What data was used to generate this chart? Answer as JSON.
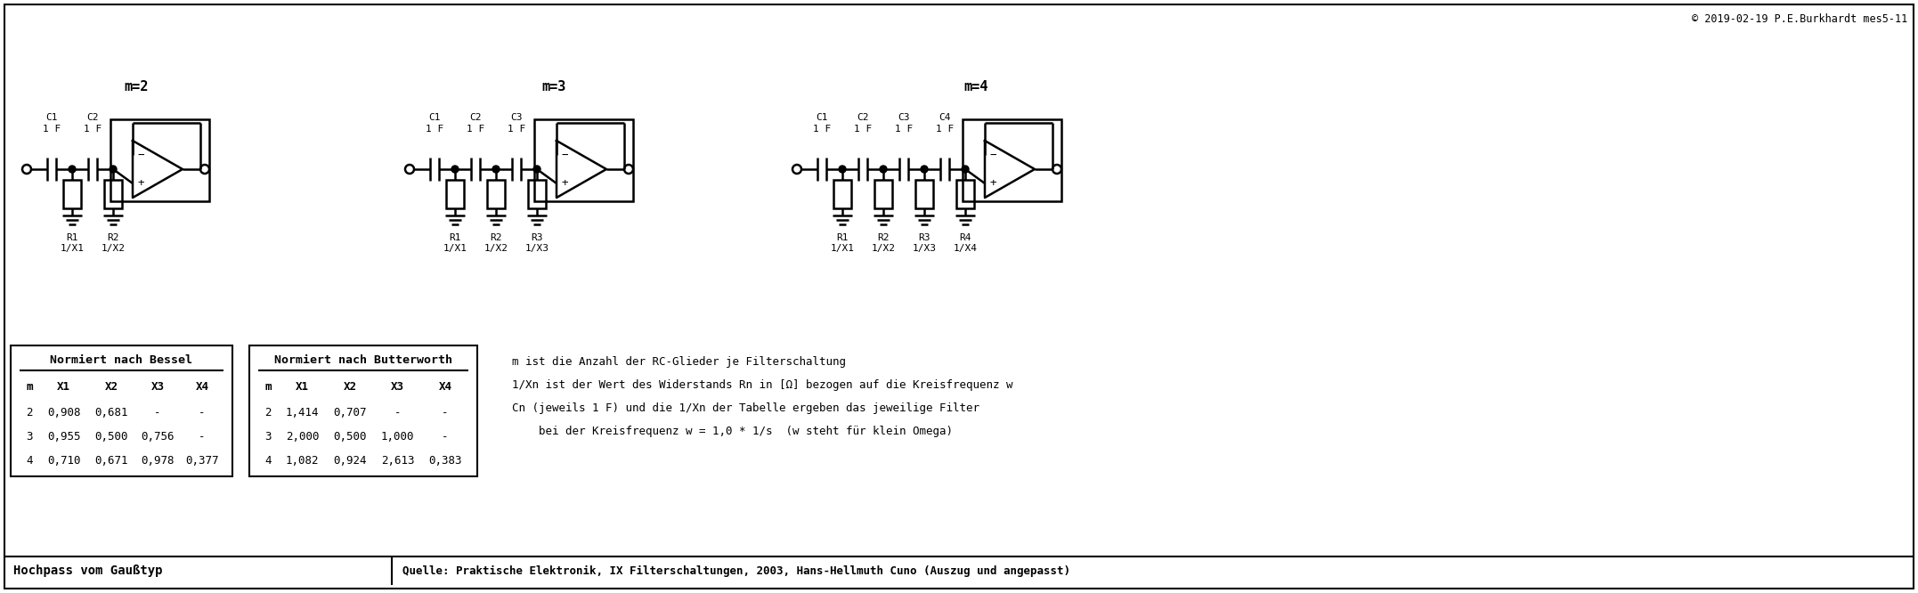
{
  "copyright": "© 2019-02-19 P.E.Burkhardt mes5-11",
  "bottom_left": "Hochpass vom Gaußtyp",
  "bottom_right": "Quelle: Praktische Elektronik, IX Filterschaltungen, 2003, Hans-Hellmuth Cuno (Auszug und angepasst)",
  "bessel_title": "Normiert nach Bessel",
  "butterworth_title": "Normiert nach Butterworth",
  "col_headers": [
    "m",
    "X1",
    "X2",
    "X3",
    "X4"
  ],
  "bessel_rows": [
    [
      "2",
      "0,908",
      "0,681",
      "-",
      "-"
    ],
    [
      "3",
      "0,955",
      "0,500",
      "0,756",
      "-"
    ],
    [
      "4",
      "0,710",
      "0,671",
      "0,978",
      "0,377"
    ]
  ],
  "butterworth_rows": [
    [
      "2",
      "1,414",
      "0,707",
      "-",
      "-"
    ],
    [
      "3",
      "2,000",
      "0,500",
      "1,000",
      "-"
    ],
    [
      "4",
      "1,082",
      "0,924",
      "2,613",
      "0,383"
    ]
  ],
  "explanation": [
    "m ist die Anzahl der RC-Glieder je Filterschaltung",
    "1/Xn ist der Wert des Widerstands Rn in [Ω] bezogen auf die Kreisfrequenz w",
    "Cn (jeweils 1 F) und die 1/Xn der Tabelle ergeben das jeweilige Filter",
    "    bei der Kreisfrequenz w = 1,0 * 1/s  (w steht für klein Omega)"
  ],
  "circuit_labels": [
    "m=2",
    "m=3",
    "m=4"
  ],
  "circuit_stages": [
    2,
    3,
    4
  ],
  "circuit_x0s": [
    30,
    460,
    895
  ],
  "bg_color": "#ffffff"
}
